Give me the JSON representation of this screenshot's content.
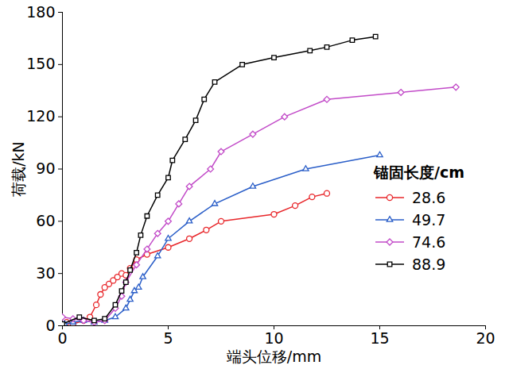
{
  "chart_data": {
    "type": "line",
    "x_label": "端头位移/mm",
    "y_label": "荷载/kN",
    "legend_title": "锚固长度/cm",
    "legend": "right",
    "grid": false,
    "xlim": [
      0,
      20
    ],
    "xticks": [
      0,
      5,
      10,
      15,
      20
    ],
    "ylim": [
      0,
      180
    ],
    "yticks": [
      0,
      30,
      60,
      90,
      120,
      150,
      180
    ],
    "series": [
      {
        "name": "28.6",
        "color": "#e8262a",
        "marker": "circle",
        "x": [
          0.2,
          0.5,
          1.0,
          1.3,
          1.6,
          1.8,
          2.0,
          2.2,
          2.4,
          2.6,
          2.8,
          3.0,
          3.2,
          3.5,
          4.0,
          5.0,
          6.0,
          6.8,
          7.5,
          10.0,
          11.0,
          11.8,
          12.5
        ],
        "values": [
          2,
          1,
          3,
          5,
          12,
          18,
          22,
          24,
          26,
          28,
          30,
          29,
          33,
          38,
          41,
          45,
          50,
          55,
          60,
          64,
          69,
          74,
          76
        ]
      },
      {
        "name": "49.7",
        "color": "#2a5ec8",
        "marker": "triangle",
        "x": [
          0.1,
          0.5,
          1.0,
          1.5,
          2.0,
          2.5,
          3.0,
          3.2,
          3.4,
          3.6,
          3.8,
          4.5,
          5.0,
          6.0,
          7.2,
          9.0,
          11.5,
          15.0
        ],
        "values": [
          1,
          2,
          3,
          2,
          3,
          5,
          10,
          15,
          20,
          22,
          28,
          40,
          50,
          60,
          70,
          80,
          90,
          98
        ]
      },
      {
        "name": "74.6",
        "color": "#c24bc8",
        "marker": "diamond",
        "x": [
          0.0,
          0.5,
          1.0,
          1.5,
          2.0,
          2.5,
          2.8,
          3.0,
          3.5,
          4.0,
          4.5,
          5.0,
          5.5,
          6.0,
          7.0,
          7.5,
          9.0,
          10.5,
          12.5,
          16.0,
          18.6
        ],
        "values": [
          5,
          4,
          3,
          2,
          3,
          10,
          17,
          25,
          35,
          44,
          53,
          60,
          70,
          80,
          90,
          100,
          110,
          120,
          130,
          134,
          137
        ]
      },
      {
        "name": "88.9",
        "color": "#000000",
        "marker": "square",
        "x": [
          0.0,
          0.8,
          1.5,
          2.0,
          2.5,
          2.8,
          3.0,
          3.2,
          3.5,
          3.7,
          4.0,
          4.5,
          5.0,
          5.2,
          5.8,
          6.3,
          6.7,
          7.2,
          8.5,
          10.0,
          11.7,
          12.5,
          13.7,
          14.8
        ],
        "values": [
          1,
          5,
          3,
          4,
          12,
          20,
          25,
          32,
          42,
          52,
          63,
          75,
          85,
          95,
          107,
          118,
          130,
          140,
          150,
          154,
          158,
          160,
          164,
          166
        ]
      }
    ]
  }
}
